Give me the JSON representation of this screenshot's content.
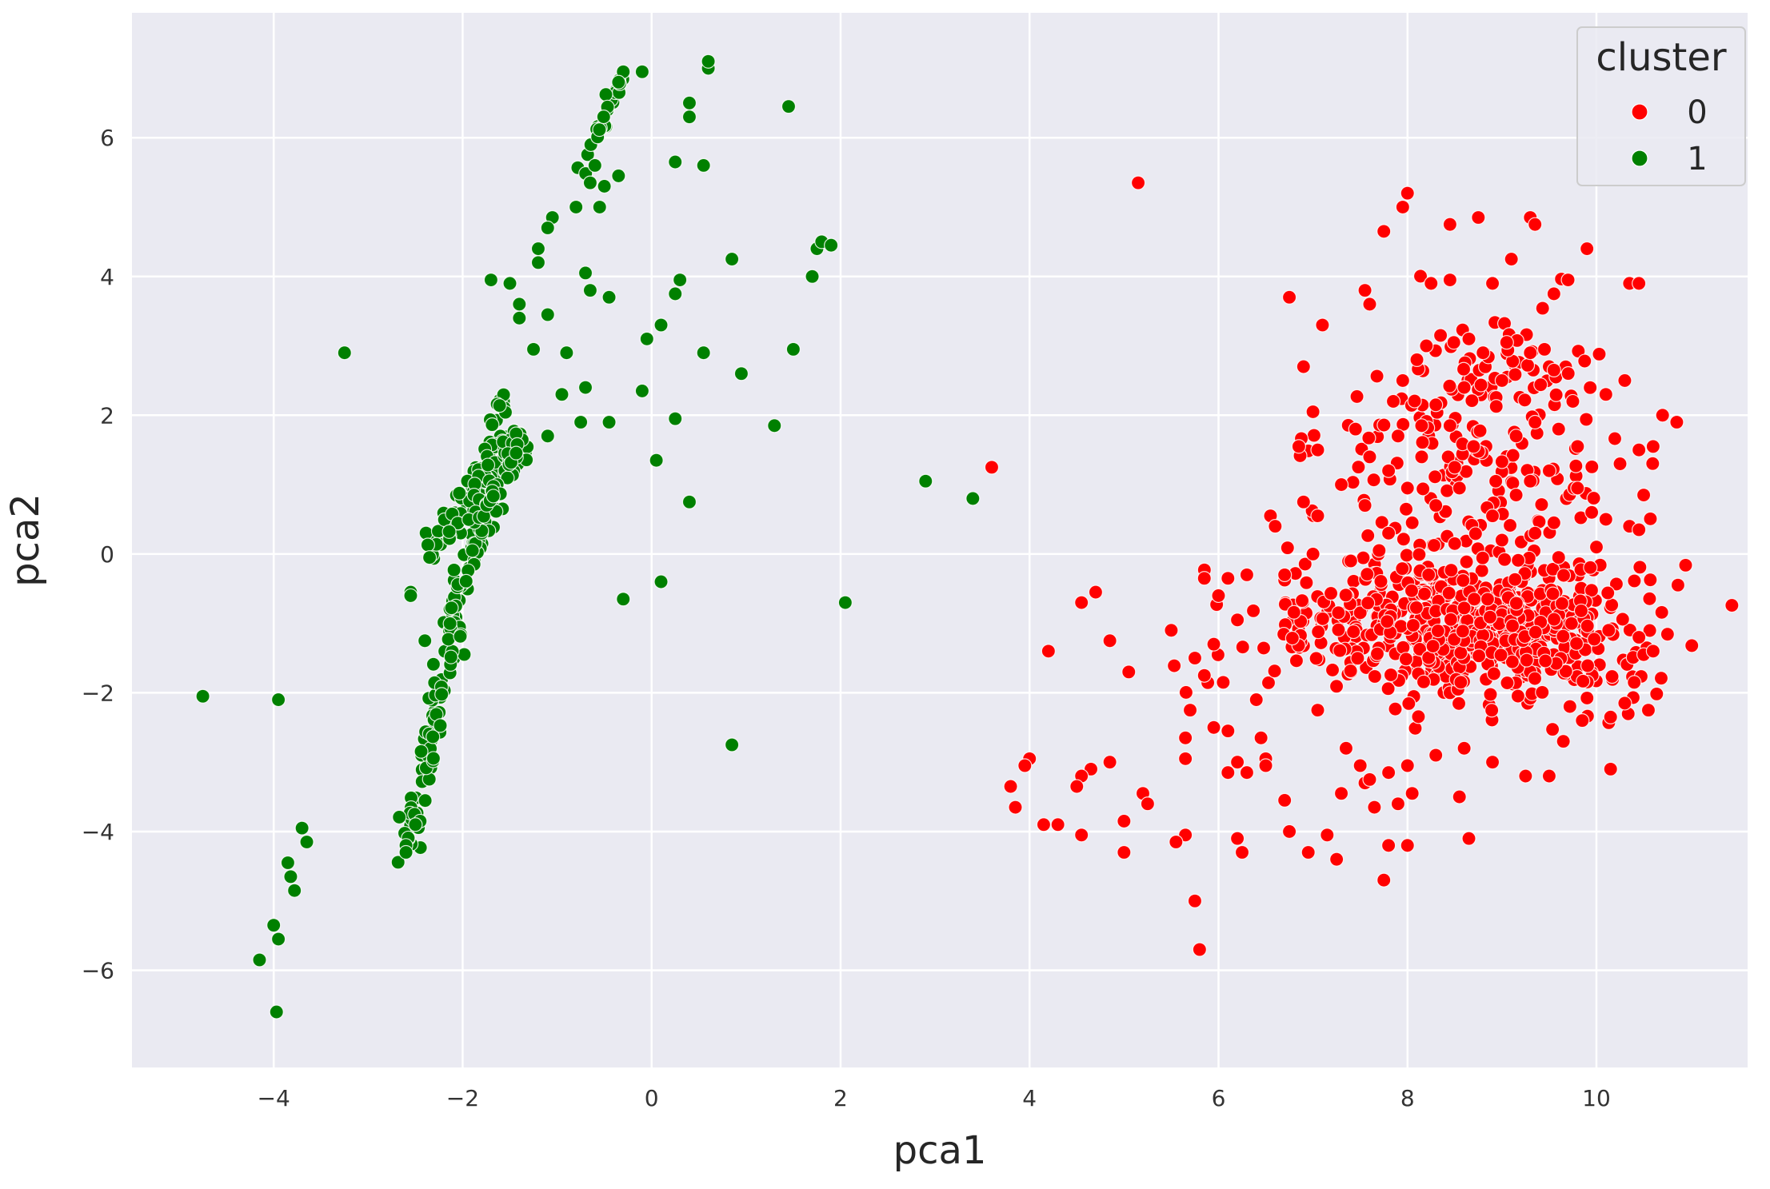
{
  "chart_data": {
    "type": "scatter",
    "title": "",
    "xlabel": "pca1",
    "ylabel": "pca2",
    "xlim": [
      -5.5,
      11.6
    ],
    "ylim": [
      -7.4,
      7.8
    ],
    "xticks": [
      -4,
      -2,
      0,
      2,
      4,
      6,
      8,
      10
    ],
    "yticks": [
      -6,
      -4,
      -2,
      0,
      2,
      4,
      6
    ],
    "grid": true,
    "legend": {
      "title": "cluster",
      "position": "top-right"
    },
    "series": [
      {
        "name": "0",
        "color": "#ff0000",
        "points": [
          [
            5.15,
            5.35
          ],
          [
            3.6,
            1.25
          ],
          [
            7.75,
            4.65
          ],
          [
            7.95,
            5.0
          ],
          [
            8.0,
            5.2
          ],
          [
            8.45,
            4.75
          ],
          [
            8.75,
            4.85
          ],
          [
            9.3,
            4.85
          ],
          [
            9.35,
            4.75
          ],
          [
            9.9,
            4.4
          ],
          [
            9.1,
            4.25
          ],
          [
            10.35,
            3.9
          ],
          [
            10.45,
            3.9
          ],
          [
            6.75,
            3.7
          ],
          [
            7.1,
            3.3
          ],
          [
            7.55,
            3.8
          ],
          [
            7.6,
            3.6
          ],
          [
            8.25,
            3.9
          ],
          [
            8.45,
            3.95
          ],
          [
            8.9,
            3.9
          ],
          [
            9.55,
            3.75
          ],
          [
            9.7,
            3.95
          ],
          [
            6.9,
            2.7
          ],
          [
            7.0,
            2.05
          ],
          [
            6.85,
            1.55
          ],
          [
            7.05,
            1.5
          ],
          [
            6.9,
            0.75
          ],
          [
            7.05,
            0.55
          ],
          [
            6.55,
            0.55
          ],
          [
            6.6,
            0.4
          ],
          [
            7.45,
            1.8
          ],
          [
            7.6,
            1.4
          ],
          [
            7.9,
            1.7
          ],
          [
            8.15,
            1.85
          ],
          [
            7.3,
            1.0
          ],
          [
            7.55,
            0.7
          ],
          [
            7.8,
            0.3
          ],
          [
            7.4,
            -0.1
          ],
          [
            7.0,
            0.0
          ],
          [
            6.7,
            -0.3
          ],
          [
            10.7,
            2.0
          ],
          [
            10.85,
            1.9
          ],
          [
            10.6,
            1.55
          ],
          [
            10.45,
            1.5
          ],
          [
            10.5,
            0.85
          ],
          [
            10.35,
            0.4
          ],
          [
            10.45,
            0.35
          ],
          [
            9.95,
            0.6
          ],
          [
            10.1,
            0.5
          ],
          [
            10.25,
            1.3
          ],
          [
            10.1,
            2.3
          ],
          [
            10.3,
            2.5
          ],
          [
            9.75,
            2.2
          ],
          [
            9.45,
            2.95
          ],
          [
            9.5,
            2.7
          ],
          [
            5.85,
            -0.35
          ],
          [
            6.0,
            -0.6
          ],
          [
            6.1,
            -0.35
          ],
          [
            6.3,
            -0.3
          ],
          [
            5.75,
            -1.5
          ],
          [
            5.5,
            -1.1
          ],
          [
            5.95,
            -1.3
          ],
          [
            5.85,
            -1.75
          ],
          [
            5.05,
            -1.7
          ],
          [
            4.85,
            -1.25
          ],
          [
            4.55,
            -0.7
          ],
          [
            4.7,
            -0.55
          ],
          [
            4.2,
            -1.4
          ],
          [
            6.2,
            -0.95
          ],
          [
            6.4,
            -2.1
          ],
          [
            6.05,
            -1.85
          ],
          [
            5.95,
            -2.5
          ],
          [
            6.1,
            -2.55
          ],
          [
            5.7,
            -2.25
          ],
          [
            5.65,
            -2.65
          ],
          [
            5.65,
            -2.95
          ],
          [
            6.2,
            -3.0
          ],
          [
            6.3,
            -3.15
          ],
          [
            6.1,
            -3.15
          ],
          [
            6.45,
            -2.65
          ],
          [
            6.5,
            -2.95
          ],
          [
            6.5,
            -3.05
          ],
          [
            5.2,
            -3.45
          ],
          [
            5.25,
            -3.6
          ],
          [
            4.85,
            -3.0
          ],
          [
            4.65,
            -3.1
          ],
          [
            4.55,
            -3.2
          ],
          [
            4.5,
            -3.35
          ],
          [
            4.0,
            -2.95
          ],
          [
            3.95,
            -3.05
          ],
          [
            3.8,
            -3.35
          ],
          [
            3.85,
            -3.65
          ],
          [
            4.15,
            -3.9
          ],
          [
            4.3,
            -3.9
          ],
          [
            4.55,
            -4.05
          ],
          [
            5.0,
            -3.85
          ],
          [
            5.0,
            -4.3
          ],
          [
            5.65,
            -4.05
          ],
          [
            5.55,
            -4.15
          ],
          [
            6.2,
            -4.1
          ],
          [
            6.25,
            -4.3
          ],
          [
            6.7,
            -3.55
          ],
          [
            6.75,
            -4.0
          ],
          [
            6.95,
            -4.3
          ],
          [
            7.15,
            -4.05
          ],
          [
            7.25,
            -4.4
          ],
          [
            7.8,
            -4.2
          ],
          [
            7.75,
            -4.7
          ],
          [
            8.0,
            -4.2
          ],
          [
            8.65,
            -4.1
          ],
          [
            5.75,
            -5.0
          ],
          [
            5.8,
            -5.7
          ],
          [
            7.3,
            -3.45
          ],
          [
            7.55,
            -3.3
          ],
          [
            7.65,
            -3.65
          ],
          [
            7.9,
            -3.6
          ],
          [
            8.05,
            -3.45
          ],
          [
            8.55,
            -3.5
          ],
          [
            7.05,
            -2.25
          ],
          [
            7.35,
            -2.8
          ],
          [
            7.5,
            -3.05
          ],
          [
            7.6,
            -3.25
          ],
          [
            7.8,
            -3.15
          ],
          [
            8.0,
            -3.05
          ],
          [
            8.3,
            -2.9
          ],
          [
            8.6,
            -2.8
          ],
          [
            8.9,
            -3.0
          ],
          [
            9.25,
            -3.2
          ],
          [
            9.5,
            -3.2
          ],
          [
            9.65,
            -2.7
          ],
          [
            10.15,
            -3.1
          ],
          [
            9.85,
            -2.4
          ],
          [
            10.15,
            -2.35
          ],
          [
            10.3,
            -2.15
          ],
          [
            10.55,
            -2.25
          ],
          [
            10.4,
            -1.85
          ],
          [
            10.5,
            -1.45
          ],
          [
            10.6,
            -1.4
          ],
          [
            10.45,
            -1.2
          ],
          [
            7.85,
            2.2
          ],
          [
            7.95,
            2.5
          ],
          [
            8.1,
            2.8
          ],
          [
            8.2,
            3.0
          ],
          [
            8.35,
            3.15
          ],
          [
            8.65,
            3.1
          ],
          [
            8.8,
            2.9
          ],
          [
            9.05,
            3.05
          ],
          [
            9.3,
            2.9
          ],
          [
            9.55,
            2.65
          ],
          [
            9.0,
            2.5
          ],
          [
            8.6,
            2.4
          ],
          [
            8.3,
            2.15
          ],
          [
            8.45,
            1.85
          ],
          [
            8.7,
            1.55
          ],
          [
            9.15,
            1.7
          ],
          [
            9.35,
            1.9
          ],
          [
            9.6,
            1.8
          ],
          [
            9.8,
            1.55
          ],
          [
            9.5,
            1.2
          ],
          [
            9.3,
            1.05
          ],
          [
            9.15,
            0.85
          ],
          [
            9.8,
            0.95
          ],
          [
            9.55,
            0.45
          ],
          [
            9.35,
            0.3
          ],
          [
            8.9,
            0.55
          ],
          [
            8.55,
            0.95
          ],
          [
            8.3,
            0.7
          ],
          [
            8.05,
            0.45
          ],
          [
            8.0,
            0.95
          ],
          [
            7.8,
            1.2
          ],
          [
            8.5,
            1.25
          ],
          [
            8.15,
            1.4
          ],
          [
            7.7,
            0.05
          ],
          [
            8.5,
            0.15
          ],
          [
            9.0,
            0.2
          ],
          [
            9.6,
            -0.05
          ],
          [
            10.0,
            0.1
          ]
        ],
        "dense_regions": [
          {
            "cx": 8.4,
            "cy": -1.0,
            "sx": 0.85,
            "sy": 0.55,
            "n": 520
          },
          {
            "cx": 9.5,
            "cy": -1.3,
            "sx": 0.55,
            "sy": 0.45,
            "n": 120
          },
          {
            "cx": 8.6,
            "cy": 1.1,
            "sx": 0.8,
            "sy": 0.7,
            "n": 120
          },
          {
            "cx": 8.9,
            "cy": 2.5,
            "sx": 0.6,
            "sy": 0.45,
            "n": 70
          }
        ]
      },
      {
        "name": "1",
        "color": "#008000",
        "points": [
          [
            -4.75,
            -2.05
          ],
          [
            -3.95,
            -2.1
          ],
          [
            -3.25,
            2.9
          ],
          [
            -4.15,
            -5.85
          ],
          [
            -3.97,
            -6.6
          ],
          [
            -4.0,
            -5.35
          ],
          [
            -3.95,
            -5.55
          ],
          [
            -3.85,
            -4.45
          ],
          [
            -3.82,
            -4.65
          ],
          [
            -3.78,
            -4.85
          ],
          [
            -3.7,
            -3.95
          ],
          [
            -3.65,
            -4.15
          ],
          [
            -2.6,
            -4.2
          ],
          [
            -2.6,
            -4.3
          ],
          [
            -2.45,
            -3.85
          ],
          [
            -2.5,
            -3.9
          ],
          [
            -2.55,
            -0.55
          ],
          [
            -2.55,
            -0.6
          ],
          [
            -2.4,
            -1.25
          ],
          [
            -2.35,
            -0.05
          ],
          [
            -1.7,
            3.95
          ],
          [
            -1.5,
            3.9
          ],
          [
            -1.4,
            3.6
          ],
          [
            -1.4,
            3.4
          ],
          [
            -1.25,
            2.95
          ],
          [
            -1.1,
            3.45
          ],
          [
            -1.1,
            1.7
          ],
          [
            -0.95,
            2.3
          ],
          [
            -0.9,
            2.9
          ],
          [
            -0.75,
            1.9
          ],
          [
            -0.7,
            2.4
          ],
          [
            -0.7,
            4.05
          ],
          [
            -0.65,
            3.8
          ],
          [
            -0.8,
            5.0
          ],
          [
            -0.55,
            5.0
          ],
          [
            -0.45,
            3.7
          ],
          [
            -0.45,
            1.9
          ],
          [
            -0.35,
            5.45
          ],
          [
            -0.3,
            -0.65
          ],
          [
            -0.1,
            2.35
          ],
          [
            -0.05,
            3.1
          ],
          [
            0.1,
            3.3
          ],
          [
            0.05,
            1.35
          ],
          [
            0.1,
            -0.4
          ],
          [
            0.25,
            1.95
          ],
          [
            0.25,
            3.75
          ],
          [
            0.3,
            3.95
          ],
          [
            0.25,
            5.65
          ],
          [
            0.4,
            0.75
          ],
          [
            0.55,
            2.9
          ],
          [
            0.55,
            5.6
          ],
          [
            0.85,
            4.25
          ],
          [
            0.95,
            2.6
          ],
          [
            0.85,
            -2.75
          ],
          [
            1.3,
            1.85
          ],
          [
            1.45,
            6.45
          ],
          [
            1.5,
            2.95
          ],
          [
            1.7,
            4.0
          ],
          [
            1.75,
            4.4
          ],
          [
            1.8,
            4.5
          ],
          [
            1.9,
            4.45
          ],
          [
            2.05,
            -0.7
          ],
          [
            2.9,
            1.05
          ],
          [
            3.4,
            0.8
          ],
          [
            -0.65,
            5.35
          ],
          [
            -0.6,
            5.6
          ],
          [
            -0.5,
            5.3
          ],
          [
            0.4,
            6.5
          ],
          [
            0.4,
            6.3
          ],
          [
            0.6,
            7.0
          ],
          [
            0.6,
            7.1
          ],
          [
            -0.1,
            6.95
          ],
          [
            -0.3,
            6.95
          ],
          [
            -0.35,
            6.8
          ],
          [
            -1.05,
            4.85
          ],
          [
            -1.1,
            4.7
          ],
          [
            -1.2,
            4.4
          ],
          [
            -1.2,
            4.2
          ]
        ],
        "curve_bands": [
          {
            "x0": -2.6,
            "y0": -4.2,
            "x1": -1.55,
            "y1": 2.2,
            "n": 160,
            "jitter": 0.07
          },
          {
            "x0": -2.35,
            "y0": 0.0,
            "x1": -1.35,
            "y1": 1.7,
            "n": 70,
            "jitter": 0.07
          },
          {
            "x0": -1.85,
            "y0": 0.4,
            "x1": -1.4,
            "y1": 1.65,
            "n": 40,
            "jitter": 0.05
          },
          {
            "x0": -0.75,
            "y0": 5.5,
            "x1": -0.3,
            "y1": 6.95,
            "n": 25,
            "jitter": 0.04
          }
        ]
      }
    ]
  }
}
